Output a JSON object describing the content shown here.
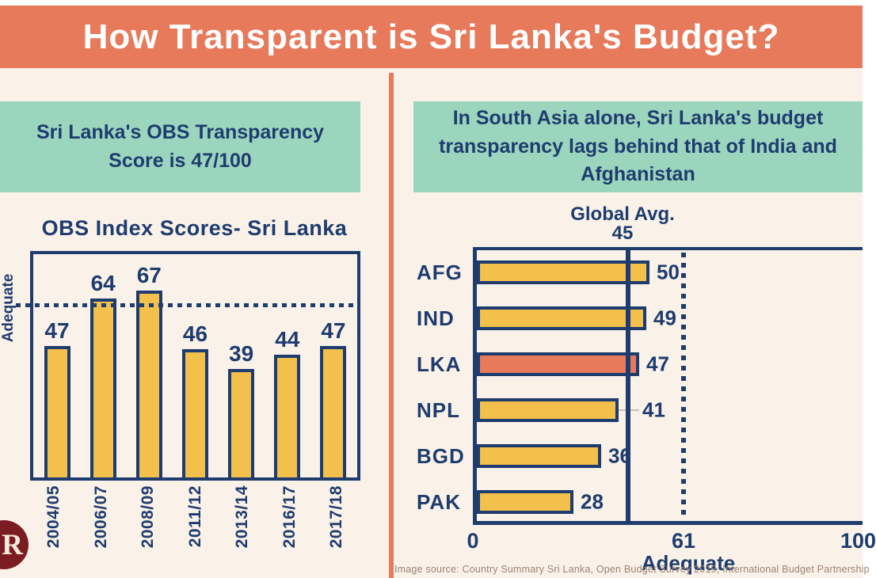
{
  "theme": {
    "salmon": "#E87A5C",
    "cream": "#FAF2E9",
    "teal": "#9CD5BE",
    "navy": "#1E3C6E",
    "gold": "#F2C04B",
    "logo_maroon": "#7B1C22"
  },
  "header": {
    "title": "How Transparent is Sri Lanka's Budget?"
  },
  "left_panel": {
    "callout": "Sri Lanka's OBS Transparency Score is 47/100"
  },
  "right_panel": {
    "callout": "In South Asia alone, Sri Lanka's budget transparency lags behind that of India and Afghanistan"
  },
  "footer": {
    "source": "Image source: Country Summary Sri Lanka, Open Budget Survey 2019, International Budget Partnership",
    "logo_letter": "R"
  },
  "chart_data": [
    {
      "id": "obs-index-scores",
      "type": "bar",
      "title": "OBS Index Scores- Sri Lanka",
      "categories": [
        "2004/05",
        "2006/07",
        "2008/09",
        "2011/12",
        "2013/14",
        "2016/17",
        "2017/18"
      ],
      "values": [
        47,
        64,
        67,
        46,
        39,
        44,
        47
      ],
      "xlabel": "",
      "ylabel": "",
      "ylim": [
        0,
        80
      ],
      "grid": false,
      "bar_color": "#F2C04B",
      "threshold": {
        "label": "Adequate",
        "value": 61,
        "style": "dotted"
      }
    },
    {
      "id": "south-asia-comparison",
      "type": "bar-horizontal",
      "title": "",
      "categories": [
        "AFG",
        "IND",
        "LKA",
        "NPL",
        "BGD",
        "PAK"
      ],
      "values": [
        50,
        49,
        47,
        41,
        36,
        28
      ],
      "xlim": [
        0,
        100
      ],
      "x_ticks": [
        0,
        61,
        100
      ],
      "grid": false,
      "bar_color": "#F2C04B",
      "highlight_category": "LKA",
      "highlight_color": "#E87A5C",
      "label_connectors": [
        "NPL"
      ],
      "reference_lines": [
        {
          "label": "Global Avg.",
          "value": 45,
          "style": "solid"
        },
        {
          "label": "Adequate",
          "value": 61,
          "style": "dotted"
        }
      ]
    }
  ]
}
